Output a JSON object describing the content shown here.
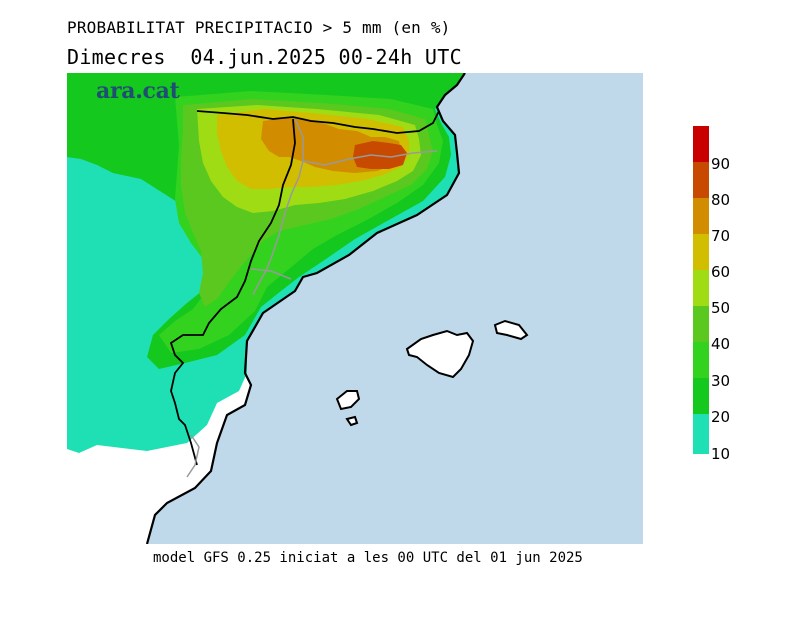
{
  "header": {
    "title": "PROBABILITAT PRECIPITACIO > 5 mm (en %)",
    "subtitle": "Dimecres  04.jun.2025 00-24h UTC"
  },
  "brand": {
    "logo_text": "ara.cat"
  },
  "footer": {
    "text": "model GFS 0.25 iniciat a les 00 UTC del 01 jun 2025"
  },
  "legend": {
    "labels": [
      "10",
      "20",
      "30",
      "40",
      "50",
      "60",
      "70",
      "80",
      "90"
    ],
    "colors": [
      "#1ee0b4",
      "#14c81e",
      "#32d21e",
      "#5ac81e",
      "#a0dc14",
      "#d2be00",
      "#d28c00",
      "#c84a00",
      "#c80000",
      "#c80000"
    ]
  },
  "map": {
    "sea_color": "#bfd9ea",
    "land_color": "#ffffff",
    "coast_color": "#000000",
    "border_color": "#999999"
  }
}
